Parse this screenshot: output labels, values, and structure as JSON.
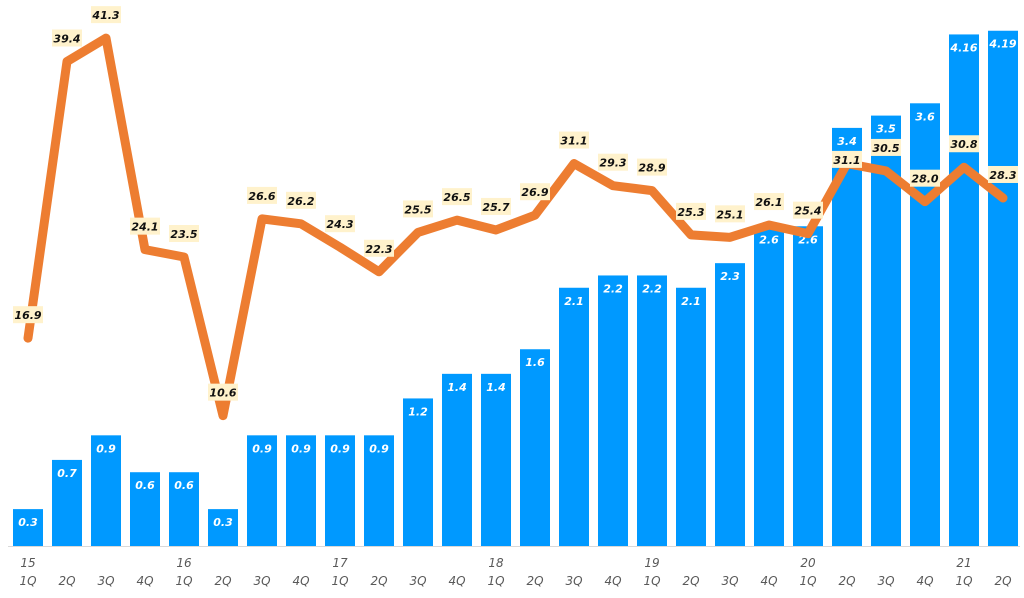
{
  "chart_data": {
    "type": "bar+line",
    "title": "",
    "categories": [
      "1Q",
      "2Q",
      "3Q",
      "4Q",
      "1Q",
      "2Q",
      "3Q",
      "4Q",
      "1Q",
      "2Q",
      "3Q",
      "4Q",
      "1Q",
      "2Q",
      "3Q",
      "4Q",
      "1Q",
      "2Q",
      "3Q",
      "4Q",
      "1Q",
      "2Q",
      "3Q",
      "4Q",
      "1Q",
      "2Q"
    ],
    "year_labels": [
      "15",
      "",
      "",
      "",
      "16",
      "",
      "",
      "",
      "17",
      "",
      "",
      "",
      "18",
      "",
      "",
      "",
      "19",
      "",
      "",
      "",
      "20",
      "",
      "",
      "",
      "21",
      ""
    ],
    "series": [
      {
        "type": "bar",
        "color": "#0099FF",
        "values": [
          0.3,
          0.7,
          0.9,
          0.6,
          0.6,
          0.3,
          0.9,
          0.9,
          0.9,
          0.9,
          1.2,
          1.4,
          1.4,
          1.6,
          2.1,
          2.2,
          2.2,
          2.1,
          2.3,
          2.6,
          2.6,
          3.4,
          3.5,
          3.6,
          4.16,
          4.19
        ],
        "labels": [
          "0.3",
          "0.7",
          "0.9",
          "0.6",
          "0.6",
          "0.3",
          "0.9",
          "0.9",
          "0.9",
          "0.9",
          "1.2",
          "1.4",
          "1.4",
          "1.6",
          "2.1",
          "2.2",
          "2.2",
          "2.1",
          "2.3",
          "2.6",
          "2.6",
          "3.4",
          "3.5",
          "3.6",
          "4.16",
          "4.19"
        ]
      },
      {
        "type": "line",
        "color": "#ED7D31",
        "label_bg": "#FFF2CC",
        "values": [
          16.9,
          39.4,
          41.3,
          24.1,
          23.5,
          10.6,
          26.6,
          26.2,
          24.3,
          22.3,
          25.5,
          26.5,
          25.7,
          26.9,
          31.1,
          29.3,
          28.9,
          25.3,
          25.1,
          26.1,
          25.4,
          31.1,
          30.5,
          28.0,
          30.8,
          28.3
        ],
        "labels": [
          "16.9",
          "39.4",
          "41.3",
          "24.1",
          "23.5",
          "10.6",
          "26.6",
          "26.2",
          "24.3",
          "22.3",
          "25.5",
          "26.5",
          "25.7",
          "26.9",
          "31.1",
          "29.3",
          "28.9",
          "25.3",
          "25.1",
          "26.1",
          "25.4",
          "31.1",
          "30.5",
          "28.0",
          "30.8",
          "28.3"
        ]
      }
    ],
    "bar_axis_range": [
      0,
      4.44
    ],
    "line_axis_range": [
      0,
      44.4
    ],
    "grid": false,
    "legend": "none"
  }
}
